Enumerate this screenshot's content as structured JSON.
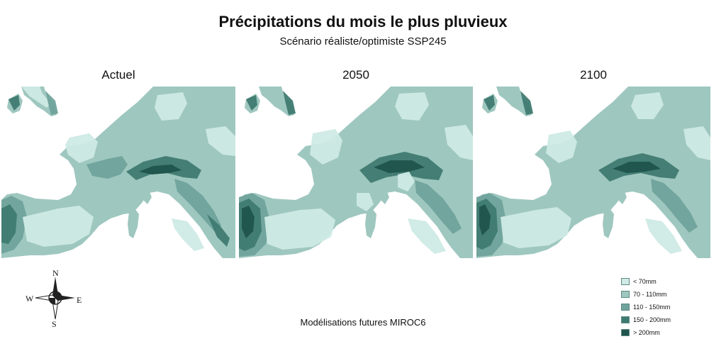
{
  "title": "Précipitations du mois le plus pluvieux",
  "subtitle": "Scénario réaliste/optimiste SSP245",
  "panels": [
    {
      "label": "Actuel"
    },
    {
      "label": "2050"
    },
    {
      "label": "2100"
    }
  ],
  "legend": {
    "items": [
      {
        "label": "< 70mm",
        "color": "#cfeae5"
      },
      {
        "label": "70 - 110mm",
        "color": "#9ec7bf"
      },
      {
        "label": "110 - 150mm",
        "color": "#6fa39b"
      },
      {
        "label": "150 - 200mm",
        "color": "#3f7a71"
      },
      {
        "label": "> 200mm",
        "color": "#1f544c"
      }
    ]
  },
  "compass": {
    "n": "N",
    "s": "S",
    "e": "E",
    "w": "W"
  },
  "footer": "Modélisations futures MIROC6"
}
